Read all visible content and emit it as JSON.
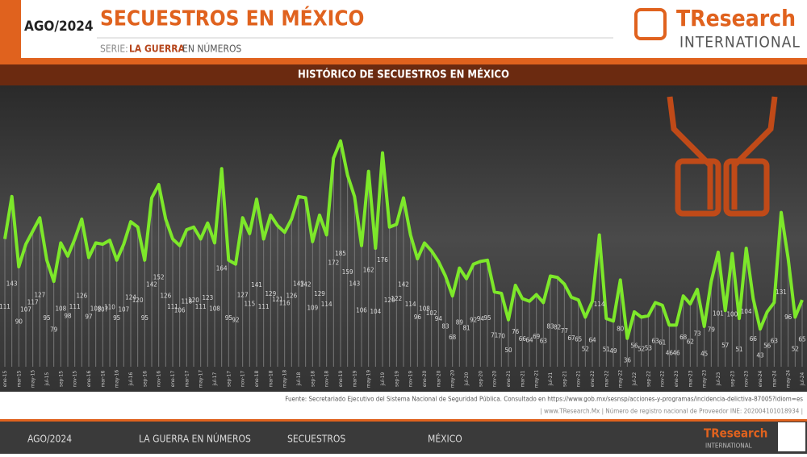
{
  "page": {
    "date": "AGO/2024",
    "heading": "SECUESTROS EN MÉXICO",
    "serie_prefix": "SERIE:",
    "serie_name": "LA GUERRA",
    "serie_suffix": "EN NÚMEROS",
    "logo_main": "TResearch",
    "logo_sub": "INTERNATIONAL",
    "source_1": "Fuente: Secretariado Ejecutivo del Sistema Nacional de Seguridad Pública. Consultado en https://www.gob.mx/sesnsp/acciones-y-programas/incidencia-delictiva-87005?idiom=es",
    "source_2": "| www.TResearch.Mx | Número de registro nacional de Proveedor INE: 202004101018934 |",
    "footer": [
      "AGO/2024",
      "LA GUERRA EN NÚMEROS",
      "SECUESTROS",
      "MÉXICO"
    ]
  },
  "chart_data": {
    "type": "line",
    "title": "HISTÓRICO DE SECUESTROS EN MÉXICO",
    "color": "#7de82a",
    "ylim": [
      0,
      225
    ],
    "categories": [
      "ene-15",
      null,
      "mar-15",
      null,
      "may-15",
      null,
      "jul-15",
      null,
      "sep-15",
      null,
      "nov-15",
      null,
      "ene-16",
      null,
      "mar-16",
      null,
      "may-16",
      null,
      "jul-16",
      null,
      "sep-16",
      null,
      "nov-16",
      null,
      "ene-17",
      null,
      "mar-17",
      null,
      "may-17",
      null,
      "jul-17",
      null,
      "sep-17",
      null,
      "nov-17",
      null,
      "ene-18",
      null,
      "mar-18",
      null,
      "may-18",
      null,
      "jul-18",
      null,
      "sep-18",
      null,
      "nov-18",
      null,
      "ene-19",
      null,
      "mar-19",
      null,
      "may-19",
      null,
      "jul-19",
      null,
      "sep-19",
      null,
      "nov-19",
      null,
      "ene-20",
      null,
      "mar-20",
      null,
      "may-20",
      null,
      "jul-20",
      null,
      "sep-20",
      null,
      "nov-20",
      null,
      "ene-21",
      null,
      "mar-21",
      null,
      "may-21",
      null,
      "jul-21",
      null,
      "sep-21",
      null,
      "nov-21",
      null,
      "ene-22",
      null,
      "mar-22",
      null,
      "may-22",
      null,
      "jul-22",
      null,
      "sep-22",
      null,
      "nov-22",
      null,
      "ene-23",
      null,
      "mar-23",
      null,
      "may-23",
      null,
      "jul-23",
      null,
      "sep-23",
      null,
      "nov-23",
      null,
      "ene-24",
      null,
      "mar-24",
      null,
      "may-24",
      null,
      "jul-24"
    ],
    "values": [
      111,
      143,
      90,
      107,
      117,
      127,
      95,
      79,
      108,
      98,
      111,
      126,
      97,
      108,
      107,
      110,
      95,
      107,
      124,
      120,
      95,
      142,
      152,
      126,
      111,
      106,
      118,
      120,
      111,
      123,
      108,
      164,
      95,
      92,
      127,
      115,
      141,
      111,
      129,
      121,
      116,
      126,
      143,
      142,
      109,
      129,
      114,
      172,
      185,
      159,
      143,
      106,
      162,
      104,
      176,
      120,
      122,
      142,
      114,
      96,
      108,
      102,
      94,
      83,
      68,
      89,
      81,
      92,
      94,
      95,
      71,
      70,
      50,
      76,
      66,
      64,
      69,
      63,
      83,
      82,
      77,
      67,
      65,
      52,
      64,
      114,
      51,
      49,
      80,
      36,
      56,
      52,
      53,
      63,
      61,
      46,
      46,
      68,
      62,
      73,
      45,
      79,
      101,
      57,
      100,
      51,
      104,
      66,
      43,
      56,
      63,
      131,
      96,
      52,
      65
    ]
  }
}
